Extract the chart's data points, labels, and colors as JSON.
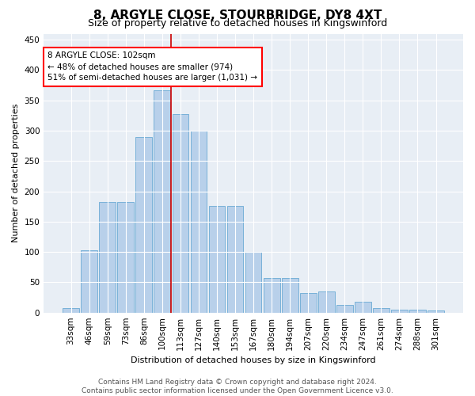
{
  "title": "8, ARGYLE CLOSE, STOURBRIDGE, DY8 4XT",
  "subtitle": "Size of property relative to detached houses in Kingswinford",
  "xlabel": "Distribution of detached houses by size in Kingswinford",
  "ylabel": "Number of detached properties",
  "footer_line1": "Contains HM Land Registry data © Crown copyright and database right 2024.",
  "footer_line2": "Contains public sector information licensed under the Open Government Licence v3.0.",
  "categories": [
    "33sqm",
    "46sqm",
    "59sqm",
    "73sqm",
    "86sqm",
    "100sqm",
    "113sqm",
    "127sqm",
    "140sqm",
    "153sqm",
    "167sqm",
    "180sqm",
    "194sqm",
    "207sqm",
    "220sqm",
    "234sqm",
    "247sqm",
    "261sqm",
    "274sqm",
    "288sqm",
    "301sqm"
  ],
  "bar_heights": [
    8,
    103,
    183,
    183,
    290,
    367,
    328,
    300,
    176,
    176,
    100,
    57,
    57,
    32,
    35,
    12,
    18,
    8,
    5,
    5,
    3
  ],
  "vline_x": 5.5,
  "annotation_text": "8 ARGYLE CLOSE: 102sqm\n← 48% of detached houses are smaller (974)\n51% of semi-detached houses are larger (1,031) →",
  "bar_color": "#b8d0ea",
  "bar_edgecolor": "#6aaad4",
  "vline_color": "#cc0000",
  "ylim": [
    0,
    460
  ],
  "yticks": [
    0,
    50,
    100,
    150,
    200,
    250,
    300,
    350,
    400,
    450
  ],
  "background_color": "#e8eef5",
  "grid_color": "#ffffff",
  "title_fontsize": 11,
  "subtitle_fontsize": 9,
  "axis_label_fontsize": 8,
  "tick_fontsize": 7.5,
  "footer_fontsize": 6.5,
  "annot_fontsize": 7.5
}
